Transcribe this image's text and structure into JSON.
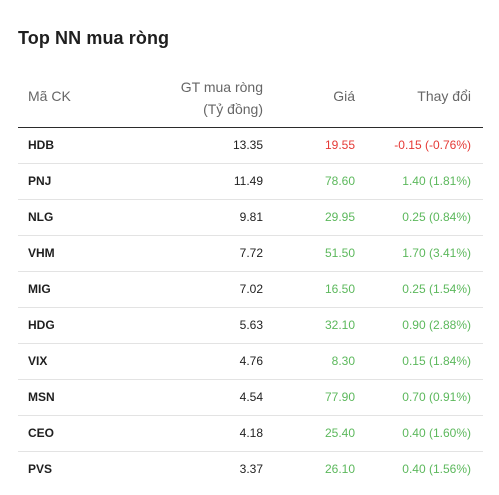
{
  "title": "Top NN mua ròng",
  "colors": {
    "up": "#5cb85c",
    "down": "#e53935"
  },
  "header": {
    "code": "Mã CK",
    "value_line1": "GT mua ròng",
    "value_line2": "(Tỷ đồng)",
    "price": "Giá",
    "change": "Thay đổi"
  },
  "rows": [
    {
      "code": "HDB",
      "value": "13.35",
      "price": "19.55",
      "change": "-0.15 (-0.76%)",
      "trend": "down"
    },
    {
      "code": "PNJ",
      "value": "11.49",
      "price": "78.60",
      "change": "1.40 (1.81%)",
      "trend": "up"
    },
    {
      "code": "NLG",
      "value": "9.81",
      "price": "29.95",
      "change": "0.25 (0.84%)",
      "trend": "up"
    },
    {
      "code": "VHM",
      "value": "7.72",
      "price": "51.50",
      "change": "1.70 (3.41%)",
      "trend": "up"
    },
    {
      "code": "MIG",
      "value": "7.02",
      "price": "16.50",
      "change": "0.25 (1.54%)",
      "trend": "up"
    },
    {
      "code": "HDG",
      "value": "5.63",
      "price": "32.10",
      "change": "0.90 (2.88%)",
      "trend": "up"
    },
    {
      "code": "VIX",
      "value": "4.76",
      "price": "8.30",
      "change": "0.15 (1.84%)",
      "trend": "up"
    },
    {
      "code": "MSN",
      "value": "4.54",
      "price": "77.90",
      "change": "0.70 (0.91%)",
      "trend": "up"
    },
    {
      "code": "CEO",
      "value": "4.18",
      "price": "25.40",
      "change": "0.40 (1.60%)",
      "trend": "up"
    },
    {
      "code": "PVS",
      "value": "3.37",
      "price": "26.10",
      "change": "0.40 (1.56%)",
      "trend": "up"
    }
  ]
}
